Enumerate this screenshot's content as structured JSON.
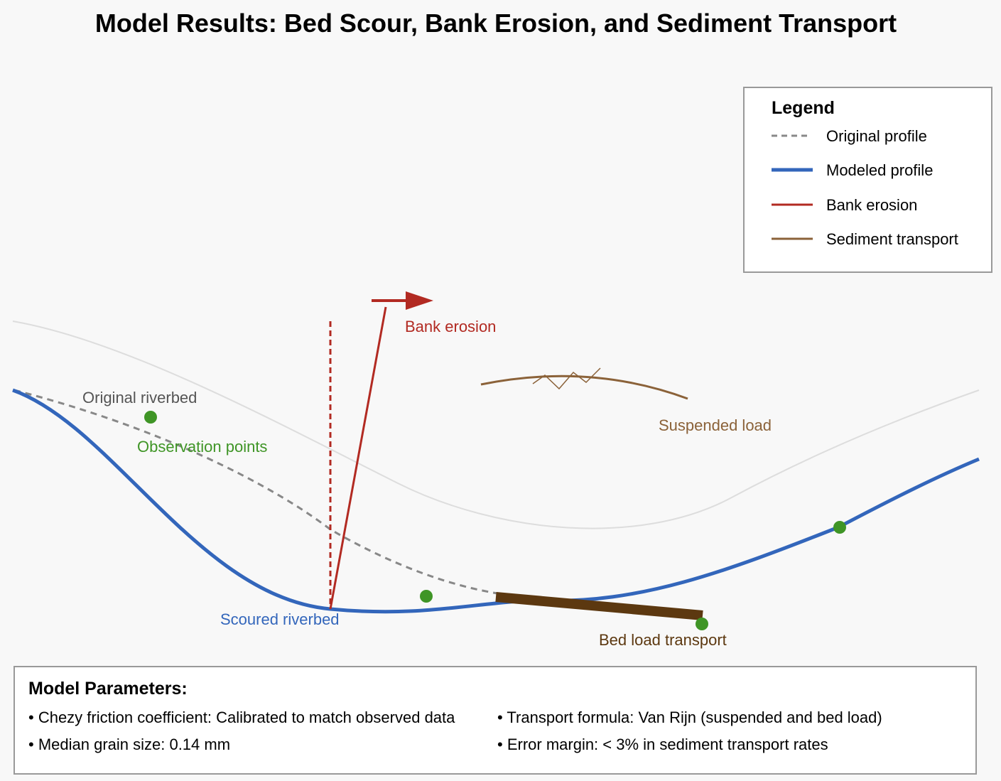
{
  "title": "Model Results: Bed Scour, Bank Erosion, and Sediment Transport",
  "legend": {
    "title": "Legend",
    "items": [
      {
        "label": "Original profile",
        "style": "dashed",
        "color": "#888888"
      },
      {
        "label": "Modeled profile",
        "style": "solid-thick",
        "color": "#3366bb"
      },
      {
        "label": "Bank erosion",
        "style": "solid",
        "color": "#b22a22"
      },
      {
        "label": "Sediment transport",
        "style": "solid",
        "color": "#8b6239"
      }
    ]
  },
  "annotations": {
    "original_riverbed": "Original riverbed",
    "observation_points": "Observation points",
    "bank_erosion": "Bank erosion",
    "suspended_load": "Suspended load",
    "scoured_riverbed": "Scoured riverbed",
    "bed_load_transport": "Bed load transport"
  },
  "colors": {
    "background": "#f8f8f8",
    "original_profile": "#888888",
    "modeled_profile": "#3366bb",
    "bank_erosion": "#b22a22",
    "sediment_transport": "#8b6239",
    "bed_load": "#5c3810",
    "observation_points": "#3f9526",
    "water_surface": "#dddddd"
  },
  "parameters": {
    "title": "Model Parameters:",
    "items": [
      "• Chezy friction coefficient: Calibrated to match observed data",
      "• Transport formula: Van Rijn (suspended and bed load)",
      "• Median grain size: 0.14 mm",
      "• Error margin: < 3% in sediment transport rates"
    ]
  }
}
